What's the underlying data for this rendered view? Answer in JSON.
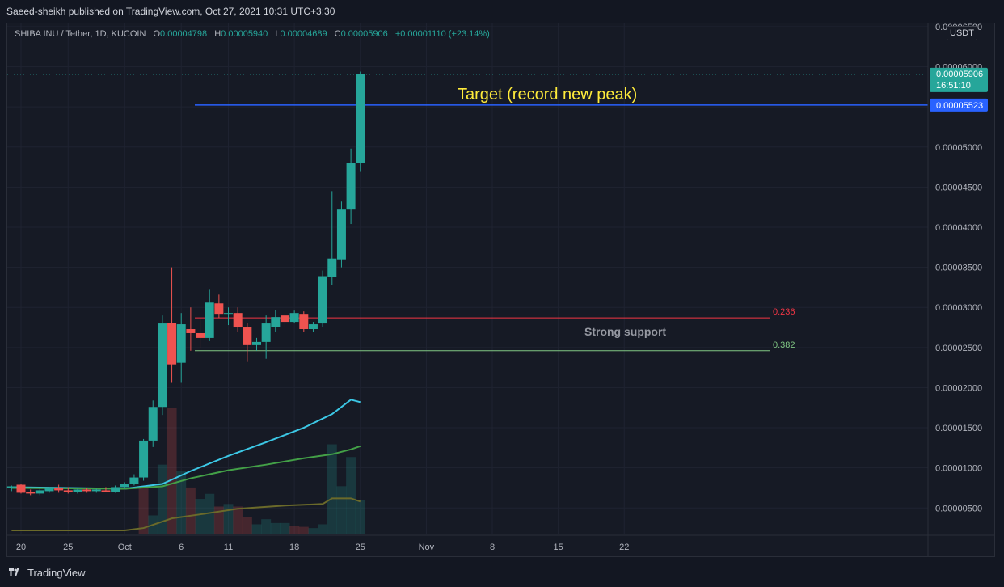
{
  "header": {
    "publisher_text": "Saeed-sheikh published on TradingView.com, Oct 27, 2021 10:31 UTC+3:30"
  },
  "legend": {
    "symbol": "SHIBA INU / Tether, 1D, KUCOIN",
    "o_label": "O",
    "o_value": "0.00004798",
    "h_label": "H",
    "h_value": "0.00005940",
    "l_label": "L",
    "l_value": "0.00004689",
    "c_label": "C",
    "c_value": "0.00005906",
    "change": "+0.00001110 (+23.14%)"
  },
  "currency": "USDT",
  "footer": {
    "brand": "TradingView"
  },
  "colors": {
    "up": "#26a69a",
    "down": "#ef5350",
    "background": "#161a25",
    "target_line": "#2962ff",
    "fib_0236": "#f23645",
    "fib_0382": "#81c784",
    "ma_fast": "#3cc8e6",
    "ma_mid": "#43a047",
    "ma_slow": "#6b6a2a",
    "annotation": "#ffeb3b"
  },
  "chart_data": {
    "type": "candlestick",
    "y_axis": {
      "ticks": [
        "0.00006500",
        "0.00006000",
        "0.00005500",
        "0.00005000",
        "0.00004500",
        "0.00004000",
        "0.00003500",
        "0.00003000",
        "0.00002500",
        "0.00002000",
        "0.00001500",
        "0.00001000",
        "0.00000500"
      ],
      "tick_values": [
        6.5e-05,
        6e-05,
        5.5e-05,
        5e-05,
        4.5e-05,
        4e-05,
        3.5e-05,
        3e-05,
        2.5e-05,
        2e-05,
        1.5e-05,
        1e-05,
        5e-06
      ],
      "range": [
        1.7e-06,
        6.54e-05
      ]
    },
    "x_axis": {
      "tick_labels": [
        "20",
        "25",
        "Oct",
        "6",
        "11",
        "18",
        "25",
        "Nov",
        "8",
        "15",
        "22"
      ],
      "tick_days": [
        0,
        5,
        11,
        17,
        22,
        29,
        36,
        43,
        50,
        57,
        64
      ],
      "day0": "Sep 20, 2021",
      "range_days": [
        -1,
        66
      ]
    },
    "candles": [
      {
        "d": -1,
        "o": 7.5e-06,
        "h": 7.8e-06,
        "l": 7.1e-06,
        "c": 7.7e-06
      },
      {
        "d": 0,
        "o": 7.9e-06,
        "h": 8e-06,
        "l": 6.8e-06,
        "c": 6.9e-06
      },
      {
        "d": 1,
        "o": 7e-06,
        "h": 7.3e-06,
        "l": 6.6e-06,
        "c": 6.8e-06
      },
      {
        "d": 2,
        "o": 6.8e-06,
        "h": 7.4e-06,
        "l": 6.6e-06,
        "c": 7.2e-06
      },
      {
        "d": 3,
        "o": 7.1e-06,
        "h": 7.6e-06,
        "l": 6.9e-06,
        "c": 7.5e-06
      },
      {
        "d": 4,
        "o": 7.5e-06,
        "h": 7.9e-06,
        "l": 6.9e-06,
        "c": 7.2e-06
      },
      {
        "d": 5,
        "o": 7.2e-06,
        "h": 7.6e-06,
        "l": 6.8e-06,
        "c": 7e-06
      },
      {
        "d": 6,
        "o": 7e-06,
        "h": 7.4e-06,
        "l": 6.8e-06,
        "c": 7.3e-06
      },
      {
        "d": 7,
        "o": 7.3e-06,
        "h": 7.5e-06,
        "l": 6.9e-06,
        "c": 7.1e-06
      },
      {
        "d": 8,
        "o": 7.1e-06,
        "h": 7.4e-06,
        "l": 6.9e-06,
        "c": 7.3e-06
      },
      {
        "d": 9,
        "o": 7.2e-06,
        "h": 7.6e-06,
        "l": 7e-06,
        "c": 7e-06
      },
      {
        "d": 10,
        "o": 7e-06,
        "h": 7.8e-06,
        "l": 6.9e-06,
        "c": 7.6e-06
      },
      {
        "d": 11,
        "o": 7.6e-06,
        "h": 8.2e-06,
        "l": 7.4e-06,
        "c": 8e-06
      },
      {
        "d": 12,
        "o": 8e-06,
        "h": 9.2e-06,
        "l": 7.8e-06,
        "c": 8.8e-06
      },
      {
        "d": 13,
        "o": 8.8e-06,
        "h": 1.36e-05,
        "l": 8.4e-06,
        "c": 1.34e-05
      },
      {
        "d": 14,
        "o": 1.34e-05,
        "h": 1.84e-05,
        "l": 1.26e-05,
        "c": 1.76e-05
      },
      {
        "d": 15,
        "o": 1.76e-05,
        "h": 2.9e-05,
        "l": 1.66e-05,
        "c": 2.8e-05
      },
      {
        "d": 16,
        "o": 2.81e-05,
        "h": 3.5e-05,
        "l": 2.06e-05,
        "c": 2.29e-05
      },
      {
        "d": 17,
        "o": 2.31e-05,
        "h": 2.93e-05,
        "l": 2.06e-05,
        "c": 2.79e-05
      },
      {
        "d": 18,
        "o": 2.73e-05,
        "h": 3e-05,
        "l": 2.46e-05,
        "c": 2.68e-05
      },
      {
        "d": 19,
        "o": 2.68e-05,
        "h": 2.87e-05,
        "l": 2.5e-05,
        "c": 2.62e-05
      },
      {
        "d": 20,
        "o": 2.62e-05,
        "h": 3.22e-05,
        "l": 2.58e-05,
        "c": 3.06e-05
      },
      {
        "d": 21,
        "o": 3.05e-05,
        "h": 3.16e-05,
        "l": 2.87e-05,
        "c": 2.92e-05
      },
      {
        "d": 22,
        "o": 2.92e-05,
        "h": 3e-05,
        "l": 2.78e-05,
        "c": 2.93e-05
      },
      {
        "d": 23,
        "o": 2.93e-05,
        "h": 3e-05,
        "l": 2.7e-05,
        "c": 2.75e-05
      },
      {
        "d": 24,
        "o": 2.75e-05,
        "h": 2.8e-05,
        "l": 2.32e-05,
        "c": 2.53e-05
      },
      {
        "d": 25,
        "o": 2.53e-05,
        "h": 2.62e-05,
        "l": 2.46e-05,
        "c": 2.57e-05
      },
      {
        "d": 26,
        "o": 2.57e-05,
        "h": 2.9e-05,
        "l": 2.36e-05,
        "c": 2.8e-05
      },
      {
        "d": 27,
        "o": 2.76e-05,
        "h": 2.97e-05,
        "l": 2.7e-05,
        "c": 2.88e-05
      },
      {
        "d": 28,
        "o": 2.9e-05,
        "h": 2.93e-05,
        "l": 2.76e-05,
        "c": 2.82e-05
      },
      {
        "d": 29,
        "o": 2.82e-05,
        "h": 2.96e-05,
        "l": 2.8e-05,
        "c": 2.93e-05
      },
      {
        "d": 30,
        "o": 2.92e-05,
        "h": 2.95e-05,
        "l": 2.7e-05,
        "c": 2.73e-05
      },
      {
        "d": 31,
        "o": 2.73e-05,
        "h": 2.82e-05,
        "l": 2.7e-05,
        "c": 2.79e-05
      },
      {
        "d": 32,
        "o": 2.8e-05,
        "h": 3.46e-05,
        "l": 2.76e-05,
        "c": 3.39e-05
      },
      {
        "d": 33,
        "o": 3.38e-05,
        "h": 4.45e-05,
        "l": 3.28e-05,
        "c": 3.61e-05
      },
      {
        "d": 34,
        "o": 3.6e-05,
        "h": 4.32e-05,
        "l": 3.5e-05,
        "c": 4.22e-05
      },
      {
        "d": 35,
        "o": 4.22e-05,
        "h": 4.98e-05,
        "l": 4.04e-05,
        "c": 4.8e-05
      },
      {
        "d": 36,
        "o": 4.8e-05,
        "h": 5.94e-05,
        "l": 4.69e-05,
        "c": 5.91e-05
      }
    ],
    "volume": [
      {
        "d": 13,
        "v": 0.38
      },
      {
        "d": 14,
        "v": 0.15
      },
      {
        "d": 15,
        "v": 0.55
      },
      {
        "d": 16,
        "v": 1.0
      },
      {
        "d": 17,
        "v": 0.5
      },
      {
        "d": 18,
        "v": 0.37
      },
      {
        "d": 19,
        "v": 0.28
      },
      {
        "d": 20,
        "v": 0.32
      },
      {
        "d": 21,
        "v": 0.22
      },
      {
        "d": 22,
        "v": 0.24
      },
      {
        "d": 23,
        "v": 0.22
      },
      {
        "d": 24,
        "v": 0.14
      },
      {
        "d": 25,
        "v": 0.08
      },
      {
        "d": 26,
        "v": 0.12
      },
      {
        "d": 27,
        "v": 0.09
      },
      {
        "d": 28,
        "v": 0.09
      },
      {
        "d": 29,
        "v": 0.07
      },
      {
        "d": 30,
        "v": 0.06
      },
      {
        "d": 31,
        "v": 0.05
      },
      {
        "d": 32,
        "v": 0.08
      },
      {
        "d": 33,
        "v": 0.71
      },
      {
        "d": 34,
        "v": 0.38
      },
      {
        "d": 35,
        "v": 0.61
      },
      {
        "d": 36,
        "v": 0.27
      }
    ],
    "volume_colors": [
      "down",
      "up",
      "up",
      "down",
      "up",
      "down",
      "up",
      "up",
      "down",
      "up",
      "down",
      "down",
      "up",
      "up",
      "up",
      "up",
      "down",
      "down",
      "up",
      "up",
      "up",
      "up",
      "up",
      "up"
    ],
    "moving_averages": [
      {
        "color_key": "ma_fast",
        "points": [
          [
            -1,
            7.6e-06
          ],
          [
            5,
            7.5e-06
          ],
          [
            11,
            7.4e-06
          ],
          [
            15,
            8e-06
          ],
          [
            18,
            9.6e-06
          ],
          [
            22,
            1.15e-05
          ],
          [
            26,
            1.32e-05
          ],
          [
            30,
            1.5e-05
          ],
          [
            33,
            1.67e-05
          ],
          [
            35,
            1.85e-05
          ],
          [
            36,
            1.82e-05
          ]
        ]
      },
      {
        "color_key": "ma_mid",
        "points": [
          [
            -1,
            7.5e-06
          ],
          [
            11,
            7.4e-06
          ],
          [
            15,
            7.7e-06
          ],
          [
            18,
            8.7e-06
          ],
          [
            22,
            9.7e-06
          ],
          [
            26,
            1.04e-05
          ],
          [
            30,
            1.12e-05
          ],
          [
            33,
            1.17e-05
          ],
          [
            35,
            1.23e-05
          ],
          [
            36,
            1.27e-05
          ]
        ]
      },
      {
        "color_key": "ma_slow",
        "points": [
          [
            -1,
            2.2e-06
          ],
          [
            11,
            2.2e-06
          ],
          [
            13,
            2.5e-06
          ],
          [
            16,
            3.7e-06
          ],
          [
            19,
            4.2e-06
          ],
          [
            23,
            4.9e-06
          ],
          [
            28,
            5.3e-06
          ],
          [
            32,
            5.5e-06
          ],
          [
            33,
            6.2e-06
          ],
          [
            35,
            6.2e-06
          ],
          [
            36,
            5.8e-06
          ]
        ]
      }
    ],
    "horizontal_lines": [
      {
        "name": "target",
        "value": 5.523e-05,
        "from_day": 13,
        "to_day": 67,
        "color_key": "target_line"
      },
      {
        "name": "fib-0236",
        "value": 2.87e-05,
        "from_day": 13,
        "to_day": 57,
        "color_key": "fib_0236",
        "label": "0.236"
      },
      {
        "name": "fib-0382",
        "value": 2.46e-05,
        "from_day": 13,
        "to_day": 57,
        "color_key": "fib_0382",
        "label": "0.382"
      }
    ],
    "last_price_line": 5.906e-05,
    "annotations": {
      "target_text": "Target (record new peak)",
      "support_text": "Strong support"
    },
    "price_labels": {
      "last_price": "0.00005906",
      "countdown": "16:51:10",
      "target_price": "0.00005523"
    }
  }
}
